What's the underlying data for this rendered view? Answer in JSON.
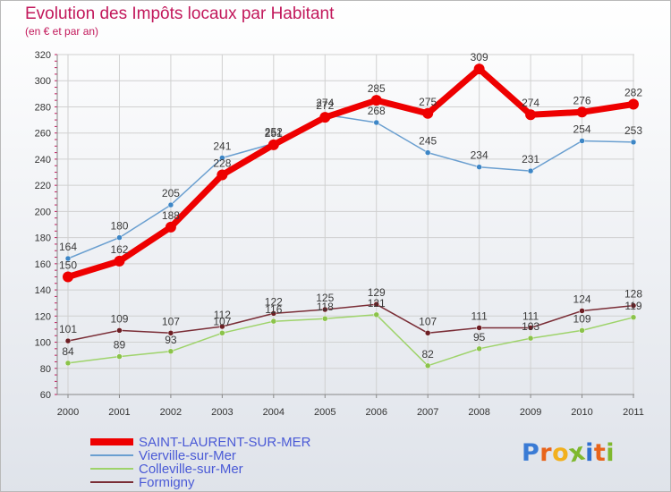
{
  "title": "Evolution des Impôts locaux par Habitant",
  "subtitle": "(en € et par an)",
  "logo": {
    "letters": [
      "P",
      "r",
      "o",
      "x",
      "i",
      "t",
      "i"
    ],
    "colors": [
      "#3a7bd5",
      "#e8641b",
      "#f2b01e",
      "#7fb82e",
      "#2f6fd0",
      "#e8641b",
      "#7fb82e"
    ]
  },
  "chart_data": {
    "type": "line",
    "x": [
      "2000",
      "2001",
      "2002",
      "2003",
      "2004",
      "2005",
      "2006",
      "2007",
      "2008",
      "2009",
      "2010",
      "2011"
    ],
    "ylim": [
      60,
      320
    ],
    "yticks": [
      60,
      80,
      100,
      120,
      140,
      160,
      180,
      200,
      220,
      240,
      260,
      280,
      300,
      320
    ],
    "grid": true,
    "legend_position": "bottom-left",
    "series": [
      {
        "name": "Colleville-sur-Mer",
        "color": "#9ed36a",
        "point_color": "#8bc34a",
        "width": 1.5,
        "point_radius": 3,
        "values": [
          84,
          89,
          93,
          107,
          116,
          118,
          121,
          82,
          95,
          103,
          109,
          119
        ],
        "labels": [
          "84",
          "89",
          "93",
          "107",
          "116",
          "118",
          "121",
          "82",
          "95",
          "103",
          "109",
          "119"
        ]
      },
      {
        "name": "Formigny",
        "color": "#7a2d36",
        "point_color": "#6d1e24",
        "width": 1.5,
        "point_radius": 3,
        "values": [
          101,
          109,
          107,
          112,
          122,
          125,
          129,
          107,
          111,
          111,
          124,
          128
        ],
        "labels": [
          "101",
          "109",
          "107",
          "112",
          "122",
          "125",
          "129",
          "107",
          "111",
          "111",
          "124",
          "128"
        ]
      },
      {
        "name": "Vierville-sur-Mer",
        "color": "#6a9fd0",
        "point_color": "#3d86c6",
        "width": 1.5,
        "point_radius": 3,
        "values": [
          164,
          180,
          205,
          241,
          252,
          274,
          268,
          245,
          234,
          231,
          254,
          253
        ],
        "labels": [
          "164",
          "180",
          "205",
          "241",
          "252",
          "274",
          "268",
          "245",
          "234",
          "231",
          "254",
          "253"
        ]
      },
      {
        "name": "SAINT-LAURENT-SUR-MER",
        "color": "#ee0000",
        "point_color": "#ee0000",
        "width": 7,
        "point_radius": 6,
        "values": [
          150,
          162,
          188,
          228,
          251,
          272,
          285,
          275,
          309,
          274,
          276,
          282
        ],
        "labels": [
          "150",
          "162",
          "188",
          "228",
          "251",
          "272",
          "285",
          "275",
          "309",
          "274",
          "276",
          "282"
        ]
      }
    ],
    "legend": [
      "SAINT-LAURENT-SUR-MER",
      "Vierville-sur-Mer",
      "Colleville-sur-Mer",
      "Formigny"
    ]
  }
}
